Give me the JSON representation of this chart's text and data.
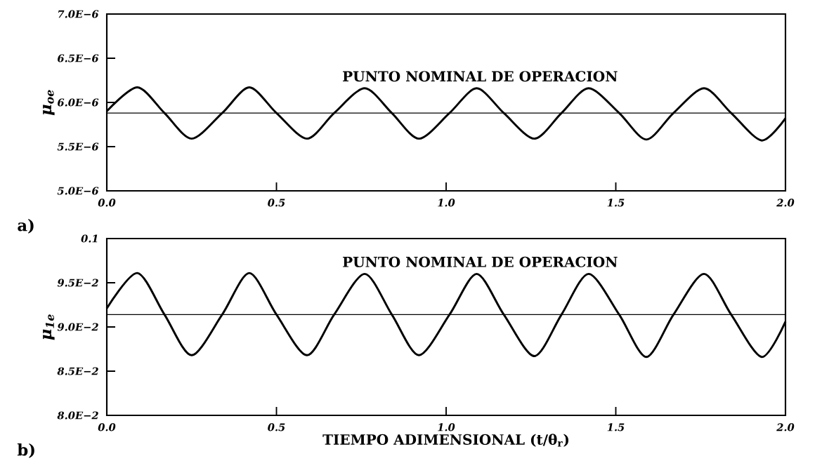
{
  "chart_data": [
    {
      "type": "line",
      "ylabel": "μ$_{oe}$",
      "annotations": [
        "a)"
      ],
      "series": [
        {
          "x": [
            0,
            0.09,
            0.17,
            0.25,
            0.34,
            0.42,
            0.5,
            0.59,
            0.67,
            0.76,
            0.84,
            0.92,
            1.01,
            1.09,
            1.17,
            1.26,
            1.34,
            1.42,
            1.51,
            1.59,
            1.67,
            1.76,
            1.84,
            1.93,
            2.0
          ],
          "color": "#000000",
          "values": [
            5.9e-06,
            6.17e-06,
            5.88e-06,
            5.59e-06,
            5.88e-06,
            6.17e-06,
            5.88e-06,
            5.59e-06,
            5.88e-06,
            6.16e-06,
            5.88e-06,
            5.59e-06,
            5.88e-06,
            6.16e-06,
            5.88e-06,
            5.59e-06,
            5.88e-06,
            6.16e-06,
            5.88e-06,
            5.58e-06,
            5.88e-06,
            6.16e-06,
            5.88e-06,
            5.57e-06,
            5.82e-06
          ]
        }
      ],
      "ref_lines": [
        {
          "axis": "y",
          "value": 5.88e-06,
          "label": "PUNTO NOMINAL DE OPERACION",
          "color": "#000000"
        }
      ],
      "xlim": [
        0,
        2
      ],
      "ylim": [
        5e-06,
        7e-06
      ],
      "xticks": [
        {
          "value": 0,
          "label": "0.0"
        },
        {
          "value": 0.5,
          "label": "0.5"
        },
        {
          "value": 1,
          "label": "1.0"
        },
        {
          "value": 1.5,
          "label": "1.5"
        },
        {
          "value": 2,
          "label": "2.0"
        }
      ],
      "yticks": [
        {
          "value": 5e-06,
          "label": "5.0E−6"
        },
        {
          "value": 5.5e-06,
          "label": "5.5E−6"
        },
        {
          "value": 6e-06,
          "label": "6.0E−6"
        },
        {
          "value": 6.5e-06,
          "label": "6.5E−6"
        },
        {
          "value": 7e-06,
          "label": "7.0E−6"
        }
      ],
      "grid": false,
      "marker": "none",
      "line_style": "solid"
    },
    {
      "type": "line",
      "xlabel": "TIEMPO ADIMENSIONAL (t/θ$_{r}$)",
      "ylabel": "μ$_{1e}$",
      "annotations": [
        "b)"
      ],
      "series": [
        {
          "x": [
            0,
            0.09,
            0.17,
            0.25,
            0.34,
            0.42,
            0.5,
            0.59,
            0.67,
            0.76,
            0.84,
            0.92,
            1.01,
            1.09,
            1.17,
            1.26,
            1.34,
            1.42,
            1.51,
            1.59,
            1.67,
            1.76,
            1.84,
            1.93,
            2.0
          ],
          "color": "#000000",
          "values": [
            0.0921,
            0.0961,
            0.0914,
            0.0868,
            0.0914,
            0.0961,
            0.0914,
            0.0868,
            0.0914,
            0.096,
            0.0914,
            0.0868,
            0.0914,
            0.096,
            0.0914,
            0.0867,
            0.0914,
            0.096,
            0.0914,
            0.0866,
            0.0914,
            0.096,
            0.0914,
            0.0866,
            0.0906
          ]
        }
      ],
      "ref_lines": [
        {
          "axis": "y",
          "value": 0.0914,
          "label": "PUNTO NOMINAL DE OPERACION",
          "color": "#000000"
        }
      ],
      "xlim": [
        0,
        2
      ],
      "ylim": [
        0.08,
        0.1
      ],
      "xticks": [
        {
          "value": 0,
          "label": "0.0"
        },
        {
          "value": 0.5,
          "label": "0.5"
        },
        {
          "value": 1,
          "label": "1.0"
        },
        {
          "value": 1.5,
          "label": "1.5"
        },
        {
          "value": 2,
          "label": "2.0"
        }
      ],
      "yticks": [
        {
          "value": 0.08,
          "label": "8.0E−2"
        },
        {
          "value": 0.085,
          "label": "8.5E−2"
        },
        {
          "value": 0.09,
          "label": "9.0E−2"
        },
        {
          "value": 0.095,
          "label": "9.5E−2"
        },
        0.1
      ],
      "grid": false,
      "marker": "none",
      "line_style": "solid"
    }
  ]
}
